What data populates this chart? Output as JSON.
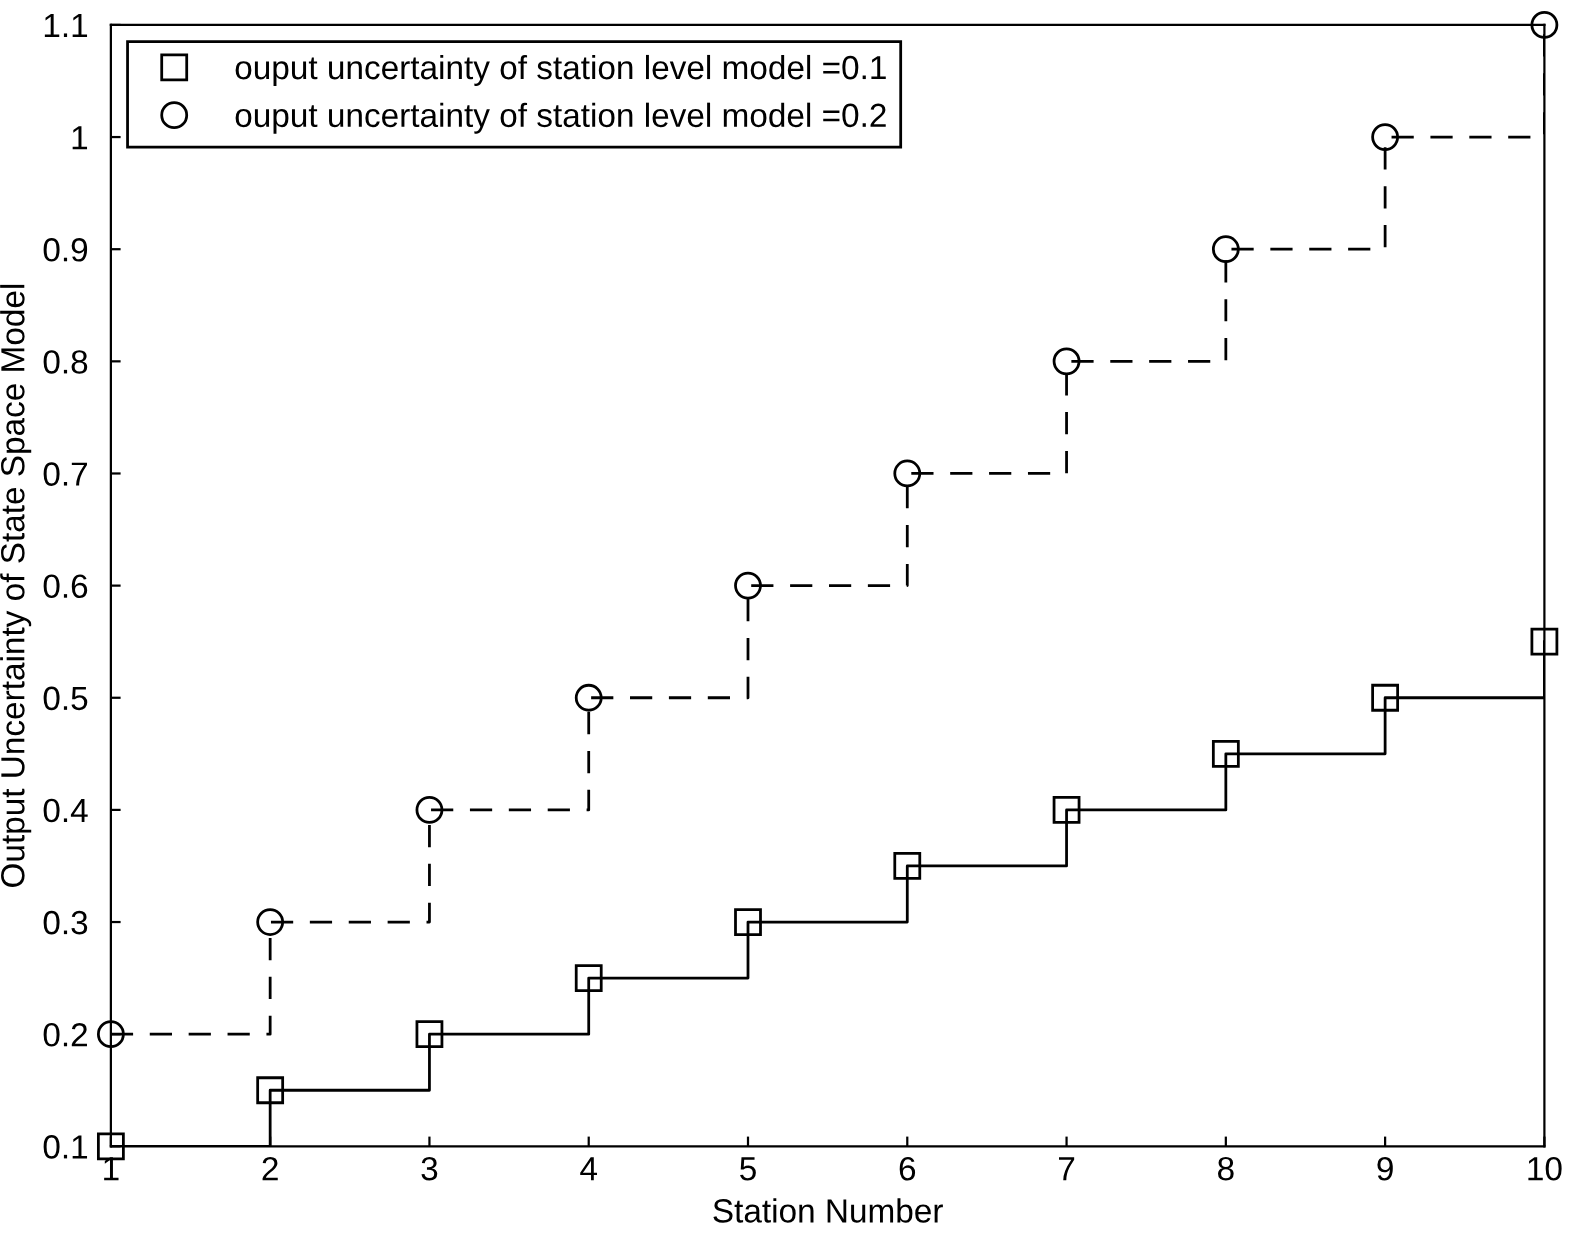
{
  "chart_data": {
    "type": "step",
    "xlabel": "Station Number",
    "ylabel": "Output Uncertainty of State Space Model",
    "x": [
      1,
      2,
      3,
      4,
      5,
      6,
      7,
      8,
      9,
      10
    ],
    "series": [
      {
        "name": "ouput uncertainty of station level model =0.1",
        "color": "#000000",
        "marker": "square",
        "line_style": "solid",
        "values": [
          0.1,
          0.15,
          0.2,
          0.25,
          0.3,
          0.35,
          0.4,
          0.45,
          0.5,
          0.55
        ]
      },
      {
        "name": "ouput uncertainty of station level model =0.2",
        "color": "#000000",
        "marker": "circle",
        "line_style": "dashed",
        "values": [
          0.2,
          0.3,
          0.4,
          0.5,
          0.6,
          0.7,
          0.8,
          0.9,
          1.0,
          1.1
        ]
      }
    ],
    "xlim": [
      1,
      10
    ],
    "xticks": [
      1,
      2,
      3,
      4,
      5,
      6,
      7,
      8,
      9,
      10
    ],
    "ylim": [
      0.1,
      1.1
    ],
    "yticks": [
      0.1,
      0.2,
      0.3,
      0.4,
      0.5,
      0.6,
      0.7,
      0.8,
      0.9,
      1,
      1.1
    ],
    "grid": false,
    "legend": "top left"
  }
}
